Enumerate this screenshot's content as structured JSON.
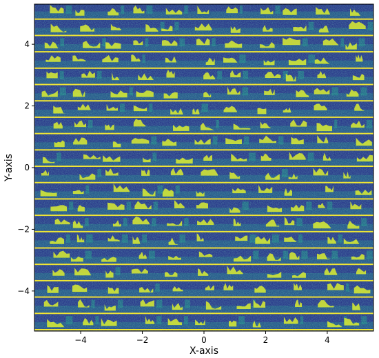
{
  "chart_data": {
    "type": "heatmap",
    "title": "",
    "xlabel": "X-axis",
    "ylabel": "Y-axis",
    "xlim": [
      -5.5,
      5.5
    ],
    "ylim": [
      -5.3,
      5.3
    ],
    "x_ticks": [
      -4,
      -2,
      0,
      2,
      4
    ],
    "y_ticks": [
      -4,
      -2,
      0,
      2,
      4
    ],
    "x_tick_labels": [
      "−4",
      "−2",
      "0",
      "2",
      "4"
    ],
    "y_tick_labels": [
      "−4",
      "−2",
      "0",
      "2",
      "4"
    ],
    "grid": false,
    "legend": "none",
    "colormap": "viridis",
    "strip_count": 20,
    "colors": {
      "low": "#2b3a8c",
      "mid": "#21918c",
      "high": "#e8f020",
      "separator": "#fde725"
    }
  }
}
